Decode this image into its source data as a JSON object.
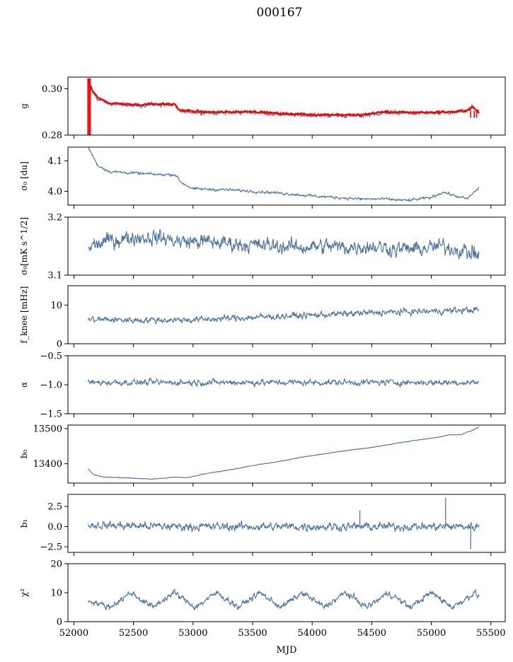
{
  "figure_title": "000167",
  "xlabel": "MJD",
  "colors": {
    "series": "#4c72a0",
    "fit": "#ff0000"
  },
  "x_ticks": [
    "52000",
    "52500",
    "53000",
    "53500",
    "54000",
    "54500",
    "55000",
    "55500"
  ],
  "chart_data": [
    {
      "type": "line",
      "panel": "g",
      "ylabel": "g",
      "ylim": [
        0.28,
        0.305
      ],
      "yticks": [
        0.28,
        0.3
      ],
      "ytick_labels": [
        "0.28",
        "0.30"
      ],
      "xlim": [
        51950,
        55620
      ],
      "x_range": [
        52120,
        55400
      ],
      "series": [
        {
          "color": "#4c72a0",
          "noise": 0.0006,
          "x": [
            52120,
            52150,
            52200,
            52300,
            52500,
            52700,
            52850,
            52880,
            53000,
            53200,
            53500,
            53700,
            54000,
            54200,
            54400,
            54600,
            54800,
            55000,
            55200,
            55300,
            55350,
            55400
          ],
          "y": [
            0.3025,
            0.299,
            0.2955,
            0.2935,
            0.2928,
            0.2932,
            0.2928,
            0.2905,
            0.29,
            0.2895,
            0.29,
            0.289,
            0.2885,
            0.2885,
            0.2882,
            0.2898,
            0.2895,
            0.2895,
            0.2897,
            0.2905,
            0.2925,
            0.29
          ]
        },
        {
          "color": "#ff0000",
          "noise": 0.0003,
          "x": [
            52120,
            52150,
            52200,
            52300,
            52500,
            52700,
            52850,
            52880,
            53000,
            53200,
            53500,
            53700,
            54000,
            54200,
            54400,
            54600,
            54800,
            55000,
            55200,
            55300,
            55350,
            55400
          ],
          "y": [
            0.304,
            0.2995,
            0.296,
            0.2938,
            0.293,
            0.2935,
            0.2932,
            0.2908,
            0.2902,
            0.2898,
            0.2902,
            0.2893,
            0.2888,
            0.2888,
            0.2886,
            0.29,
            0.2897,
            0.2898,
            0.29,
            0.2907,
            0.292,
            0.2895
          ]
        }
      ]
    },
    {
      "type": "line",
      "panel": "sigma0",
      "ylabel": "σ₀ [du]",
      "ylim": [
        3.955,
        4.145
      ],
      "yticks": [
        4.0,
        4.1
      ],
      "ytick_labels": [
        "4.0",
        "4.1"
      ],
      "xlim": [
        51950,
        55620
      ],
      "series": [
        {
          "color": "#4c72a0",
          "noise": 0.003,
          "x": [
            52120,
            52200,
            52300,
            52500,
            52700,
            52850,
            52900,
            53000,
            53300,
            53600,
            53800,
            54000,
            54200,
            54400,
            54600,
            54800,
            55000,
            55100,
            55200,
            55300,
            55400
          ],
          "y": [
            4.145,
            4.085,
            4.065,
            4.06,
            4.055,
            4.055,
            4.03,
            4.008,
            4.005,
            3.998,
            3.992,
            3.985,
            3.98,
            3.975,
            3.975,
            3.97,
            3.98,
            3.998,
            3.985,
            3.975,
            4.012
          ]
        }
      ]
    },
    {
      "type": "line",
      "panel": "sigma0_mk",
      "ylabel": "σ₀[mK s^1/2]",
      "ylim": [
        3.1,
        3.2
      ],
      "yticks": [
        3.1,
        3.2
      ],
      "ytick_labels": [
        "3.1",
        "3.2"
      ],
      "xlim": [
        51950,
        55620
      ],
      "series": [
        {
          "color": "#4c72a0",
          "noise": 0.009,
          "x": [
            52120,
            52300,
            52500,
            52700,
            52900,
            53100,
            53300,
            53500,
            53700,
            53900,
            54100,
            54300,
            54500,
            54700,
            54900,
            55100,
            55300,
            55400
          ],
          "y": [
            3.148,
            3.16,
            3.165,
            3.165,
            3.158,
            3.158,
            3.155,
            3.152,
            3.15,
            3.148,
            3.15,
            3.148,
            3.15,
            3.145,
            3.145,
            3.15,
            3.14,
            3.135
          ]
        }
      ]
    },
    {
      "type": "line",
      "panel": "fknee",
      "ylabel": "f_knee [mHz]",
      "ylim": [
        0,
        15
      ],
      "yticks": [
        0,
        10
      ],
      "ytick_labels": [
        "0",
        "10"
      ],
      "xlim": [
        51950,
        55620
      ],
      "series": [
        {
          "color": "#4c72a0",
          "noise": 0.55,
          "x": [
            52120,
            52500,
            53000,
            53500,
            54000,
            54500,
            55000,
            55400
          ],
          "y": [
            6.3,
            6.1,
            6.2,
            6.8,
            7.4,
            8.0,
            8.4,
            8.8
          ]
        }
      ]
    },
    {
      "type": "line",
      "panel": "alpha",
      "ylabel": "α",
      "ylim": [
        -1.5,
        -0.5
      ],
      "yticks": [
        -1.5,
        -1.0,
        -0.5
      ],
      "ytick_labels": [
        "−1.5",
        "−1.0",
        "−0.5"
      ],
      "xlim": [
        51950,
        55620
      ],
      "series": [
        {
          "color": "#4c72a0",
          "noise": 0.035,
          "x": [
            52120,
            53000,
            54000,
            55000,
            55400
          ],
          "y": [
            -0.96,
            -0.96,
            -0.96,
            -0.96,
            -0.96
          ]
        }
      ]
    },
    {
      "type": "line",
      "panel": "b0",
      "ylabel": "b₀",
      "ylim": [
        13345,
        13510
      ],
      "yticks": [
        13400,
        13500
      ],
      "ytick_labels": [
        "13400",
        "13500"
      ],
      "xlim": [
        51950,
        55620
      ],
      "series": [
        {
          "color": "#4c72a0",
          "noise": 0.6,
          "x": [
            52120,
            52160,
            52250,
            52450,
            52650,
            52850,
            52950,
            53100,
            53300,
            53500,
            53700,
            53900,
            54100,
            54300,
            54500,
            54700,
            54900,
            55050,
            55150,
            55250,
            55350,
            55400
          ],
          "y": [
            13385,
            13370,
            13362,
            13360,
            13356,
            13362,
            13360,
            13372,
            13382,
            13395,
            13405,
            13418,
            13428,
            13438,
            13446,
            13458,
            13468,
            13475,
            13482,
            13483,
            13496,
            13505
          ]
        }
      ]
    },
    {
      "type": "line",
      "panel": "b1",
      "ylabel": "b₁",
      "ylim": [
        -3.2,
        4.0
      ],
      "yticks": [
        -2.5,
        0.0,
        2.5
      ],
      "ytick_labels": [
        "−2.5",
        "0.0",
        "2.5"
      ],
      "xlim": [
        51950,
        55620
      ],
      "series": [
        {
          "color": "#4c72a0",
          "noise": 0.35,
          "x": [
            52120,
            52500,
            53000,
            53500,
            54000,
            54500,
            55000,
            55400
          ],
          "y": [
            0.2,
            0.1,
            0.0,
            0.0,
            0.0,
            0.0,
            0.0,
            0.0
          ]
        }
      ]
    },
    {
      "type": "line",
      "panel": "chi2",
      "ylabel": "χ²",
      "ylim": [
        0,
        20
      ],
      "yticks": [
        0,
        10,
        20
      ],
      "ytick_labels": [
        "0",
        "10",
        "20"
      ],
      "xlim": [
        51950,
        55620
      ],
      "series": [
        {
          "color": "#4c72a0",
          "noise": 0.7,
          "x": [
            52120,
            52300,
            52480,
            52660,
            52840,
            53020,
            53200,
            53380,
            53560,
            53740,
            53920,
            54100,
            54280,
            54460,
            54640,
            54820,
            55000,
            55180,
            55360,
            55400
          ],
          "y": [
            7.5,
            5.0,
            10.0,
            5.0,
            10.0,
            5.0,
            10.0,
            5.0,
            10.0,
            5.0,
            10.0,
            5.0,
            10.0,
            5.0,
            10.0,
            5.0,
            10.0,
            5.0,
            10.0,
            8.5
          ]
        }
      ]
    }
  ]
}
